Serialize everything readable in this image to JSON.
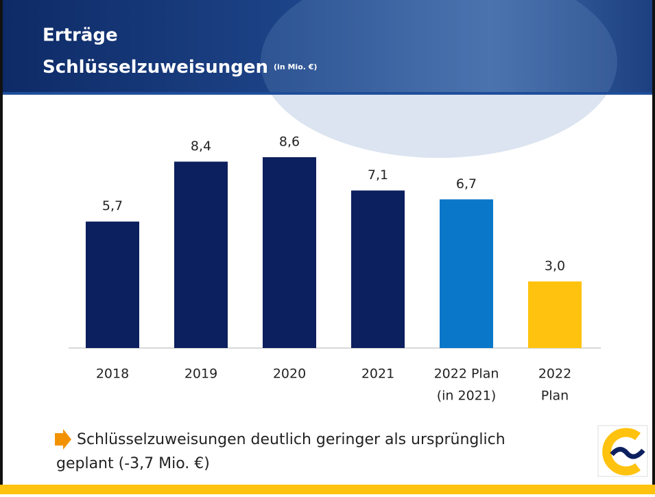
{
  "header": {
    "title_line1": "Erträge",
    "title_line2": "Schlüsselzuweisungen",
    "title_unit": "(in Mio. €)"
  },
  "chart_data": {
    "type": "bar",
    "categories": [
      [
        "2018"
      ],
      [
        "2019"
      ],
      [
        "2020"
      ],
      [
        "2021"
      ],
      [
        "2022 Plan",
        "(in 2021)"
      ],
      [
        "2022",
        "Plan"
      ]
    ],
    "values": [
      5.7,
      8.4,
      8.6,
      7.1,
      6.7,
      3.0
    ],
    "value_labels": [
      "5,7",
      "8,4",
      "8,6",
      "7,1",
      "6,7",
      "3,0"
    ],
    "colors": [
      "#0c1f5e",
      "#0c1f5e",
      "#0c1f5e",
      "#0c1f5e",
      "#0a77c9",
      "#ffc20e"
    ]
  },
  "footer": {
    "lines": [
      "Schlüsselzuweisungen deutlich geringer als ursprünglich",
      "geplant (-3,7 Mio. €)"
    ]
  }
}
